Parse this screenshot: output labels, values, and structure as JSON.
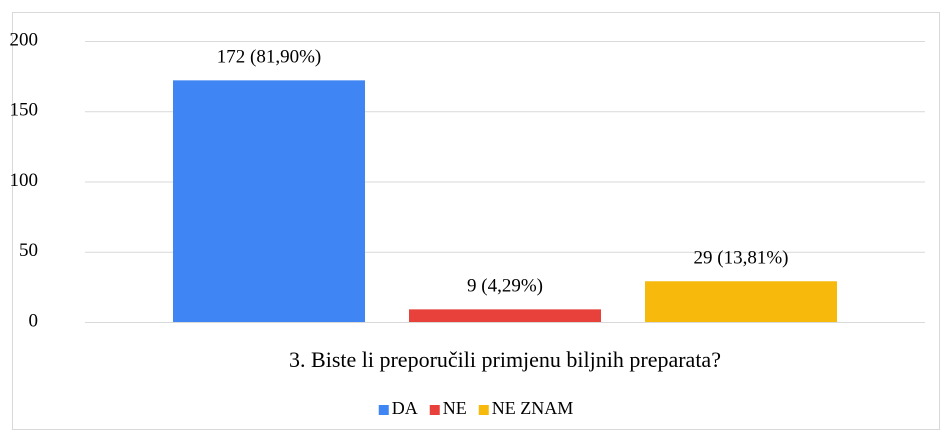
{
  "chart_data": {
    "type": "bar",
    "categories": [
      "3. Biste li preporučili primjenu biljnih preparata?"
    ],
    "series": [
      {
        "name": "DA",
        "color": "#3f86f4",
        "values": [
          172
        ],
        "value_labels": [
          "172 (81,90%)"
        ]
      },
      {
        "name": "NE",
        "color": "#e8413b",
        "values": [
          9
        ],
        "value_labels": [
          "9 (4,29%)"
        ]
      },
      {
        "name": "NE ZNAM",
        "color": "#f6b90c",
        "values": [
          29
        ],
        "value_labels": [
          "29 (13,81%)"
        ]
      }
    ],
    "ylim": [
      0,
      200
    ],
    "yticks": [
      0,
      50,
      100,
      150,
      200
    ],
    "grid": true,
    "legend": "bottom"
  }
}
